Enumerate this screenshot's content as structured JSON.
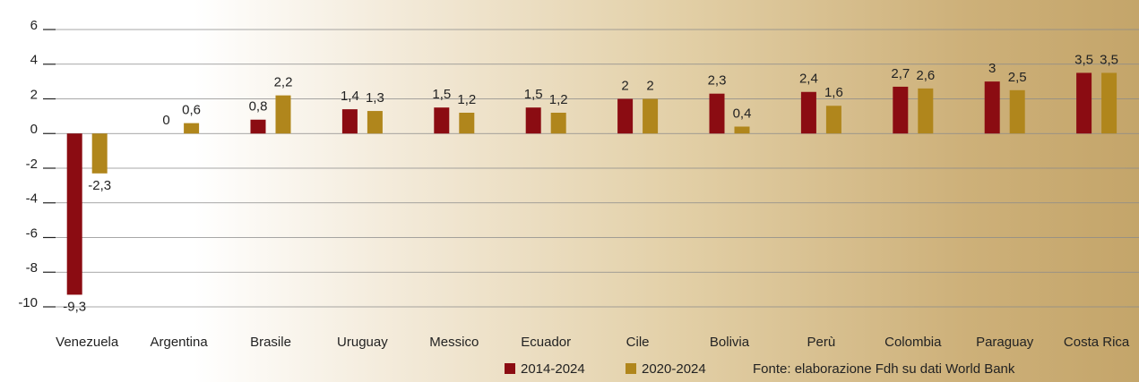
{
  "chart_data": {
    "type": "bar",
    "categories": [
      "Venezuela",
      "Argentina",
      "Brasile",
      "Uruguay",
      "Messico",
      "Ecuador",
      "Cile",
      "Bolivia",
      "Perù",
      "Colombia",
      "Paraguay",
      "Costa Rica"
    ],
    "series": [
      {
        "name": "2014-2024",
        "color": "#8b0c12",
        "values": [
          -9.3,
          0,
          0.8,
          1.4,
          1.5,
          1.5,
          2,
          2.3,
          2.4,
          2.7,
          3,
          3.5
        ],
        "value_labels": [
          "-9,3",
          "0",
          "0,8",
          "1,4",
          "1,5",
          "1,5",
          "2",
          "2,3",
          "2,4",
          "2,7",
          "3",
          "3,5"
        ]
      },
      {
        "name": "2020-2024",
        "color": "#b0861c",
        "values": [
          -2.3,
          0.6,
          2.2,
          1.3,
          1.2,
          1.2,
          2,
          0.4,
          1.6,
          2.6,
          2.5,
          3.5
        ],
        "value_labels": [
          "-2,3",
          "0,6",
          "2,2",
          "1,3",
          "1,2",
          "1,2",
          "2",
          "0,4",
          "1,6",
          "2,6",
          "2,5",
          "3,5"
        ]
      }
    ],
    "ylim": [
      -10,
      6
    ],
    "yticks": [
      -10,
      -8,
      -6,
      -4,
      -2,
      0,
      2,
      4,
      6
    ],
    "grid": true,
    "source": "Fonte: elaborazione Fdh su dati World Bank"
  }
}
